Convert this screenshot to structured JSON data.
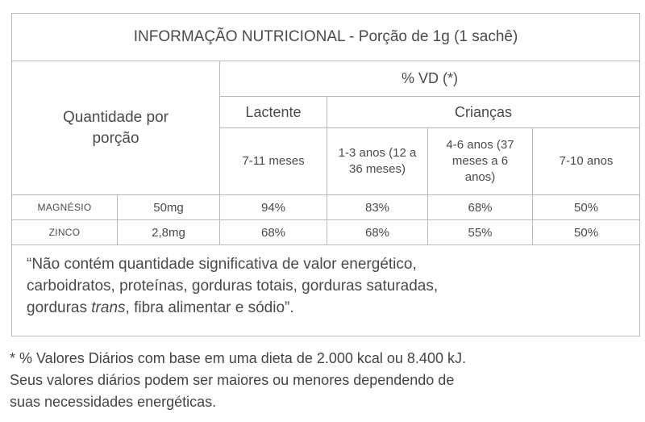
{
  "header": {
    "title": "INFORMAÇÃO NUTRICIONAL - Porção de 1g (1 sachê)"
  },
  "table": {
    "quantity_label": "Quantidade por porção",
    "vd_label": "% VD (*)",
    "groups": [
      "Lactente",
      "Crianças"
    ],
    "age_columns": [
      "7-11 meses",
      "1-3 anos (12 a 36 meses)",
      "4-6 anos (37 meses a 6 anos)",
      "7-10 anos"
    ],
    "rows": [
      [
        "MAGNÉSIO",
        "50mg",
        "94%",
        "83%",
        "68%",
        "50%"
      ],
      [
        "ZINCO",
        "2,8mg",
        "68%",
        "68%",
        "55%",
        "50%"
      ]
    ]
  },
  "note": {
    "lines": [
      "“Não contém quantidade significativa de valor energético,",
      "carboidratos, proteínas, gorduras totais, gorduras saturadas,",
      [
        "gorduras ",
        "trans",
        ", fibra alimentar e sódio”."
      ]
    ]
  },
  "footnote": {
    "lines": [
      "* % Valores Diários com base em uma dieta de 2.000 kcal ou 8.400 kJ.",
      "Seus valores diários podem ser maiores ou menores dependendo de",
      "suas necessidades energéticas."
    ]
  }
}
